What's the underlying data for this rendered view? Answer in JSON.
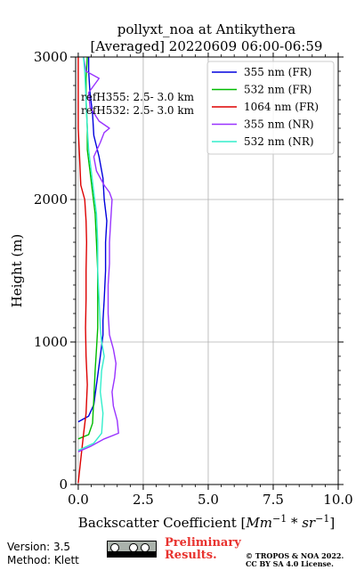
{
  "title_line1": "pollyxt_noa at Antikythera",
  "title_line2": "[Averaged] 20220609 06:00-06:59",
  "annotation_line1": "refH355:  2.5- 3.0 km",
  "annotation_line2": "refH532:  2.5- 3.0 km",
  "footer": {
    "version": "Version: 3.5",
    "method": "Method: Klett",
    "preliminary_line1": "Preliminary",
    "preliminary_line2": "Results.",
    "copyright_line1": "© TROPOS & NOA 2022.",
    "copyright_line2": "CC BY SA 4.0 License.",
    "license_badge_icon": "cc-by-sa-icon"
  },
  "chart_data": {
    "type": "line",
    "xlabel": "Backscatter Coefficient [Mm⁻¹ * sr⁻¹]",
    "ylabel": "Height (m)",
    "xlim": [
      -0.1,
      10.0
    ],
    "ylim": [
      0,
      3000
    ],
    "xticks": [
      "0.0",
      "2.5",
      "5.0",
      "7.5",
      "10.0"
    ],
    "xtick_values": [
      0,
      2.5,
      5.0,
      7.5,
      10.0
    ],
    "yticks": [
      "0",
      "1000",
      "2000",
      "3000"
    ],
    "ytick_values": [
      0,
      1000,
      2000,
      3000
    ],
    "grid": true,
    "legend_position": "top-right",
    "series": [
      {
        "name": "355 nm (FR)",
        "color": "#0000dd",
        "points": [
          [
            0.0,
            440
          ],
          [
            0.4,
            480
          ],
          [
            0.6,
            560
          ],
          [
            0.7,
            700
          ],
          [
            0.85,
            900
          ],
          [
            0.95,
            1050
          ],
          [
            0.95,
            1150
          ],
          [
            1.0,
            1300
          ],
          [
            1.05,
            1500
          ],
          [
            1.05,
            1700
          ],
          [
            1.1,
            1850
          ],
          [
            1.0,
            2000
          ],
          [
            0.95,
            2150
          ],
          [
            0.8,
            2300
          ],
          [
            0.6,
            2450
          ],
          [
            0.55,
            2600
          ],
          [
            0.45,
            2750
          ],
          [
            0.4,
            2900
          ],
          [
            0.4,
            3000
          ]
        ]
      },
      {
        "name": "532 nm (FR)",
        "color": "#00bb00",
        "points": [
          [
            0.0,
            320
          ],
          [
            0.4,
            350
          ],
          [
            0.55,
            430
          ],
          [
            0.6,
            600
          ],
          [
            0.65,
            800
          ],
          [
            0.7,
            950
          ],
          [
            0.75,
            1100
          ],
          [
            0.75,
            1300
          ],
          [
            0.75,
            1500
          ],
          [
            0.7,
            1700
          ],
          [
            0.65,
            1900
          ],
          [
            0.55,
            2050
          ],
          [
            0.45,
            2200
          ],
          [
            0.35,
            2350
          ],
          [
            0.35,
            2500
          ],
          [
            0.3,
            2700
          ],
          [
            0.3,
            2850
          ],
          [
            0.35,
            3000
          ]
        ]
      },
      {
        "name": "1064 nm (FR)",
        "color": "#dd0000",
        "points": [
          [
            0.0,
            10
          ],
          [
            0.08,
            150
          ],
          [
            0.2,
            350
          ],
          [
            0.3,
            500
          ],
          [
            0.35,
            700
          ],
          [
            0.3,
            900
          ],
          [
            0.28,
            1100
          ],
          [
            0.3,
            1300
          ],
          [
            0.3,
            1500
          ],
          [
            0.32,
            1700
          ],
          [
            0.3,
            1850
          ],
          [
            0.25,
            2000
          ],
          [
            0.1,
            2100
          ],
          [
            0.05,
            2300
          ],
          [
            0.0,
            2500
          ],
          [
            0.0,
            3000
          ]
        ]
      },
      {
        "name": "355 nm (NR)",
        "color": "#9933ff",
        "points": [
          [
            0.0,
            230
          ],
          [
            0.5,
            270
          ],
          [
            1.0,
            320
          ],
          [
            1.55,
            360
          ],
          [
            1.5,
            450
          ],
          [
            1.35,
            550
          ],
          [
            1.3,
            650
          ],
          [
            1.4,
            750
          ],
          [
            1.45,
            850
          ],
          [
            1.35,
            950
          ],
          [
            1.2,
            1050
          ],
          [
            1.15,
            1200
          ],
          [
            1.15,
            1400
          ],
          [
            1.2,
            1550
          ],
          [
            1.2,
            1700
          ],
          [
            1.25,
            1850
          ],
          [
            1.3,
            2000
          ],
          [
            1.2,
            2050
          ],
          [
            1.0,
            2100
          ],
          [
            0.7,
            2200
          ],
          [
            0.6,
            2300
          ],
          [
            0.85,
            2400
          ],
          [
            1.0,
            2470
          ],
          [
            1.2,
            2500
          ],
          [
            0.8,
            2550
          ],
          [
            0.45,
            2650
          ],
          [
            0.4,
            2750
          ],
          [
            0.8,
            2850
          ],
          [
            0.3,
            2900
          ],
          [
            0.2,
            3000
          ]
        ]
      },
      {
        "name": "532 nm (NR)",
        "color": "#33eecc",
        "points": [
          [
            0.0,
            240
          ],
          [
            0.6,
            290
          ],
          [
            0.9,
            360
          ],
          [
            0.95,
            500
          ],
          [
            0.85,
            650
          ],
          [
            0.9,
            800
          ],
          [
            1.0,
            900
          ],
          [
            0.9,
            1000
          ],
          [
            0.85,
            1100
          ],
          [
            0.8,
            1300
          ],
          [
            0.75,
            1500
          ],
          [
            0.75,
            1700
          ],
          [
            0.7,
            1900
          ],
          [
            0.6,
            2050
          ],
          [
            0.5,
            2200
          ],
          [
            0.4,
            2350
          ],
          [
            0.35,
            2500
          ],
          [
            0.3,
            2700
          ],
          [
            0.25,
            2900
          ],
          [
            0.2,
            3000
          ]
        ]
      }
    ]
  }
}
